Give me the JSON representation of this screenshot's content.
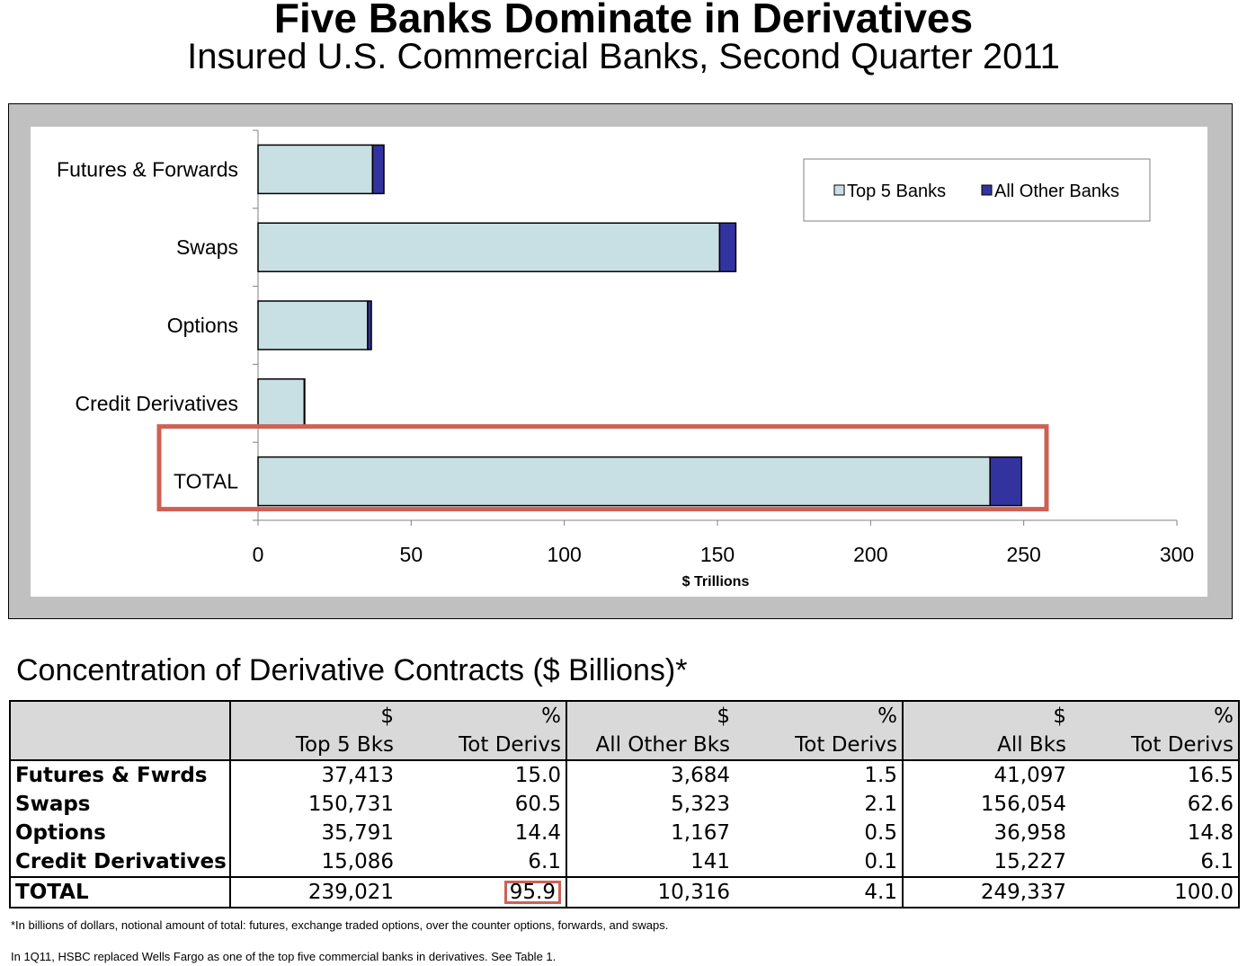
{
  "title": "Five Banks Dominate in Derivatives",
  "subtitle": "Insured U.S. Commercial Banks, Second Quarter 2011",
  "chart_data": {
    "type": "bar",
    "orientation": "horizontal",
    "stacked": true,
    "categories": [
      "Futures & Forwards",
      "Swaps",
      "Options",
      "Credit Derivatives",
      "TOTAL"
    ],
    "series": [
      {
        "name": "Top 5 Banks",
        "values": [
          37.4,
          150.7,
          35.8,
          15.1,
          239.0
        ],
        "color": "#c8e0e4"
      },
      {
        "name": "All Other Banks",
        "values": [
          3.7,
          5.3,
          1.2,
          0.1,
          10.3
        ],
        "color": "#3333a0"
      }
    ],
    "xlabel": "$ Trillions",
    "xlim": [
      0,
      300
    ],
    "xticks": [
      "0",
      "50",
      "100",
      "150",
      "200",
      "250",
      "300"
    ],
    "legend_position": "top-right",
    "highlighted_category": "TOTAL",
    "highlight_color": "#cd6155"
  },
  "table": {
    "title": "Concentration of Derivative Contracts ($ Billions)*",
    "header_row1": [
      "",
      "$",
      "%",
      "$",
      "%",
      "$",
      "%"
    ],
    "header_row2": [
      "",
      "Top 5 Bks",
      "Tot Derivs",
      "All Other Bks",
      "Tot Derivs",
      "All Bks",
      "Tot Derivs"
    ],
    "rows": [
      [
        "Futures & Fwrds",
        "37,413",
        "15.0",
        "3,684",
        "1.5",
        "41,097",
        "16.5"
      ],
      [
        "Swaps",
        "150,731",
        "60.5",
        "5,323",
        "2.1",
        "156,054",
        "62.6"
      ],
      [
        "Options",
        "35,791",
        "14.4",
        "1,167",
        "0.5",
        "36,958",
        "14.8"
      ],
      [
        "Credit Derivatives",
        "15,086",
        "6.1",
        "141",
        "0.1",
        "15,227",
        "6.1"
      ]
    ],
    "total_row": [
      "TOTAL",
      "239,021",
      "95.9",
      "10,316",
      "4.1",
      "249,337",
      "100.0"
    ]
  },
  "footnotes": {
    "note1": "*In billions of dollars, notional amount of total: futures, exchange traded options, over the counter options, forwards, and swaps.",
    "note2": "In 1Q11, HSBC replaced Wells Fargo as one of the top five commercial banks in derivatives.  See Table 1."
  }
}
